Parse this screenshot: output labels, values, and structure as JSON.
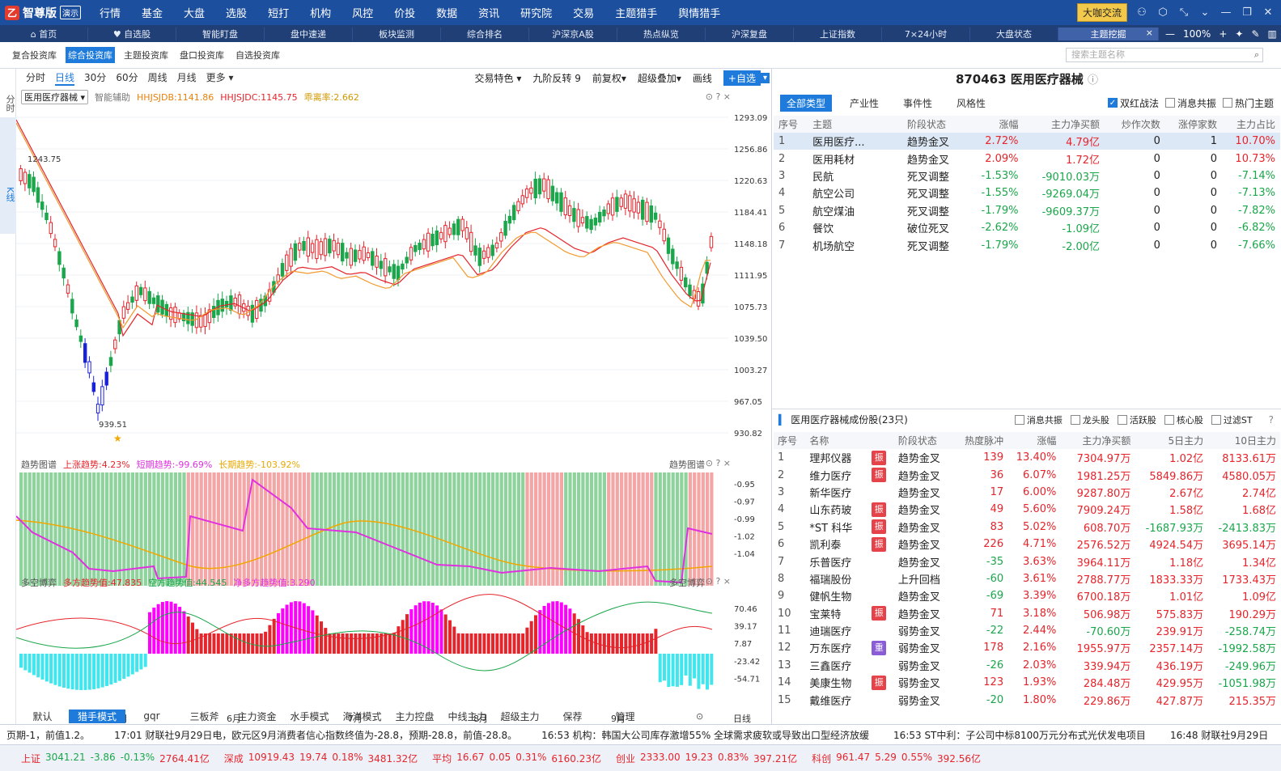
{
  "app": {
    "logo_text": "智尊版",
    "logo_tag": "演示",
    "logo_mark": "乙"
  },
  "main_menu": [
    "行情",
    "基金",
    "大盘",
    "选股",
    "短打",
    "机构",
    "风控",
    "价投",
    "数据",
    "资讯",
    "研究院",
    "交易",
    "主题猎手",
    "舆情猎手"
  ],
  "top_right": {
    "button": "大咖交流"
  },
  "tabs": [
    {
      "label": "⌂ 首页"
    },
    {
      "label": "♥ 自选股"
    },
    {
      "label": "智能盯盘"
    },
    {
      "label": "盘中速递"
    },
    {
      "label": "板块监测"
    },
    {
      "label": "综合排名"
    },
    {
      "label": "沪深京A股"
    },
    {
      "label": "热点纵览"
    },
    {
      "label": "沪深复盘"
    },
    {
      "label": "上证指数"
    },
    {
      "label": "7×24小时"
    },
    {
      "label": "大盘状态"
    }
  ],
  "active_tab": {
    "label": "主题挖掘",
    "close": "×"
  },
  "tab_controls": {
    "minus": "—",
    "zoom": "100%",
    "plus": "+"
  },
  "subtabs": [
    "复合投资库",
    "综合投资库",
    "主题投资库",
    "盘口投资库",
    "自选投资库"
  ],
  "search": {
    "placeholder": "搜索主题名称"
  },
  "left_strip": [
    "分时",
    "K线"
  ],
  "period": {
    "items": [
      "分时",
      "日线",
      "30分",
      "60分",
      "周线",
      "月线",
      "更多 ▾"
    ],
    "right": [
      "交易特色 ▾",
      "九阶反转 9",
      "前复权▾",
      "超级叠加▾",
      "画线"
    ],
    "add": "+自选",
    "dropdown": "▾"
  },
  "kinfo": {
    "name": "医用医疗器械 ▾",
    "assist": "智能辅助",
    "l1": "HHJSJDB:1141.86",
    "l2": "HHJSJDC:1145.75",
    "l3": "乖离率:2.662"
  },
  "panel_icons": "⊙ ? ×",
  "ind1": {
    "name": "趋势图谱",
    "a": "上涨趋势:4.23%",
    "b": "短期趋势:-99.69%",
    "c": "长期趋势:-103.92%"
  },
  "ind2": {
    "name": "多空博弈",
    "a": "多方趋势值:47.835",
    "b": "空方趋势值:44.545",
    "c": "净多方趋势值:3.290"
  },
  "bottom_tabs": [
    "默认",
    "猎手模式",
    "gqr",
    "三板斧",
    "主力资金",
    "水手模式",
    "海洋模式",
    "主力控盘",
    "中线主力",
    "超级主力",
    "保荐",
    "管理"
  ],
  "x_labels": [
    "5月",
    "6月",
    "7月",
    "8月",
    "9月",
    "日线"
  ],
  "price_axis": [
    "1293.09",
    "1256.86",
    "1220.63",
    "1184.41",
    "1148.18",
    "1111.95",
    "1075.73",
    "1039.50",
    "1003.27",
    "967.05",
    "930.82"
  ],
  "price_marks": {
    "high": "1243.75",
    "low": "939.51"
  },
  "ind1_axis": [
    "-0.95",
    "-0.97",
    "-0.99",
    "-1.02",
    "-1.04"
  ],
  "ind2_axis": [
    "70.46",
    "39.17",
    "7.87",
    "-23.42",
    "-54.71"
  ],
  "right": {
    "title": "870463 医用医疗器械",
    "info_icon": "ⓘ",
    "filters": [
      "全部类型",
      "产业性",
      "事件性",
      "风格性"
    ],
    "checks": [
      {
        "label": "双红战法",
        "on": true
      },
      {
        "label": "消息共振",
        "on": false
      },
      {
        "label": "热门主题",
        "on": false
      }
    ],
    "theme_headers": [
      "序号",
      "主题",
      "阶段状态",
      "涨幅",
      "主力净买额",
      "炒作次数",
      "涨停家数",
      "主力占比"
    ],
    "themes": [
      [
        "1",
        "医用医疗...",
        "趋势金叉",
        "2.72%",
        "4.79亿",
        "0",
        "1",
        "10.70%"
      ],
      [
        "2",
        "医用耗材",
        "趋势金叉",
        "2.09%",
        "1.72亿",
        "0",
        "0",
        "10.73%"
      ],
      [
        "3",
        "民航",
        "死叉调整",
        "-1.53%",
        "-9010.03万",
        "0",
        "0",
        "-7.14%"
      ],
      [
        "4",
        "航空公司",
        "死叉调整",
        "-1.55%",
        "-9269.04万",
        "0",
        "0",
        "-7.13%"
      ],
      [
        "5",
        "航空煤油",
        "死叉调整",
        "-1.79%",
        "-9609.37万",
        "0",
        "0",
        "-7.82%"
      ],
      [
        "6",
        "餐饮",
        "破位死叉",
        "-2.62%",
        "-1.09亿",
        "0",
        "0",
        "-6.82%"
      ],
      [
        "7",
        "机场航空",
        "死叉调整",
        "-1.79%",
        "-2.00亿",
        "0",
        "0",
        "-7.66%"
      ]
    ],
    "comp_title": "医用医疗器械成份股(23只)",
    "comp_opts": [
      "消息共振",
      "龙头股",
      "活跃股",
      "核心股",
      "过滤ST"
    ],
    "stock_headers": [
      "序号",
      "名称",
      "",
      "阶段状态",
      "热度脉冲",
      "涨幅",
      "主力净买额",
      "5日主力",
      "10日主力"
    ],
    "stocks": [
      [
        "1",
        "理邦仪器",
        "振",
        "趋势金叉",
        "139",
        "13.40%",
        "7304.97万",
        "1.02亿",
        "8133.61万"
      ],
      [
        "2",
        "维力医疗",
        "振",
        "趋势金叉",
        "36",
        "6.07%",
        "1981.25万",
        "5849.86万",
        "4580.05万"
      ],
      [
        "3",
        "新华医疗",
        "",
        "趋势金叉",
        "17",
        "6.00%",
        "9287.80万",
        "2.67亿",
        "2.74亿"
      ],
      [
        "4",
        "山东药玻",
        "振",
        "趋势金叉",
        "49",
        "5.60%",
        "7909.24万",
        "1.58亿",
        "1.68亿"
      ],
      [
        "5",
        "*ST 科华",
        "振",
        "趋势金叉",
        "83",
        "5.02%",
        "608.70万",
        "-1687.93万",
        "-2413.83万"
      ],
      [
        "6",
        "凯利泰",
        "振",
        "趋势金叉",
        "226",
        "4.71%",
        "2576.52万",
        "4924.54万",
        "3695.14万"
      ],
      [
        "7",
        "乐普医疗",
        "",
        "趋势金叉",
        "-35",
        "3.63%",
        "3964.11万",
        "1.18亿",
        "1.34亿"
      ],
      [
        "8",
        "福瑞股份",
        "",
        "上升回档",
        "-60",
        "3.61%",
        "2788.77万",
        "1833.33万",
        "1733.43万"
      ],
      [
        "9",
        "健帆生物",
        "",
        "趋势金叉",
        "-69",
        "3.39%",
        "6700.18万",
        "1.01亿",
        "1.09亿"
      ],
      [
        "10",
        "宝莱特",
        "振",
        "趋势金叉",
        "71",
        "3.18%",
        "506.98万",
        "575.83万",
        "190.29万"
      ],
      [
        "11",
        "迪瑞医疗",
        "",
        "弱势金叉",
        "-22",
        "2.44%",
        "-70.60万",
        "239.91万",
        "-258.74万"
      ],
      [
        "12",
        "万东医疗",
        "重",
        "弱势金叉",
        "178",
        "2.16%",
        "1955.97万",
        "2357.14万",
        "-1992.58万"
      ],
      [
        "13",
        "三鑫医疗",
        "",
        "弱势金叉",
        "-26",
        "2.03%",
        "339.94万",
        "436.19万",
        "-249.96万"
      ],
      [
        "14",
        "美康生物",
        "振",
        "弱势金叉",
        "123",
        "1.93%",
        "284.48万",
        "429.95万",
        "-1051.98万"
      ],
      [
        "15",
        "戴维医疗",
        "",
        "弱势金叉",
        "-20",
        "1.80%",
        "229.86万",
        "427.87万",
        "215.35万"
      ]
    ]
  },
  "ticker": [
    "页期-1，前值1.2。",
    "17:01 财联社9月29日电，欧元区9月消费者信心指数终值为-28.8，预期-28.8，前值-28.8。",
    "16:53 机构：韩国大公司库存激增55% 全球需求疲软或导致出口型经济放缓",
    "16:53 ST中利：子公司中标8100万元分布式光伏发电项目",
    "16:48 财联社9月29日"
  ],
  "status": [
    {
      "name": "上证",
      "v1": "3041.21",
      "v2": "-3.86",
      "v3": "-0.13%",
      "v4": "2764.41亿"
    },
    {
      "name": "深成",
      "v1": "10919.43",
      "v2": "19.74",
      "v3": "0.18%",
      "v4": "3481.32亿"
    },
    {
      "name": "平均",
      "v1": "16.67",
      "v2": "0.05",
      "v3": "0.31%",
      "v4": "6160.23亿"
    },
    {
      "name": "创业",
      "v1": "2333.00",
      "v2": "19.23",
      "v3": "0.83%",
      "v4": "397.21亿"
    },
    {
      "name": "科创",
      "v1": "961.47",
      "v2": "5.29",
      "v3": "0.55%",
      "v4": "392.56亿"
    }
  ],
  "colors": {
    "up": "#e5242b",
    "down": "#1aa64a",
    "accent": "#1e7bdb",
    "header": "#1d4f9f"
  }
}
